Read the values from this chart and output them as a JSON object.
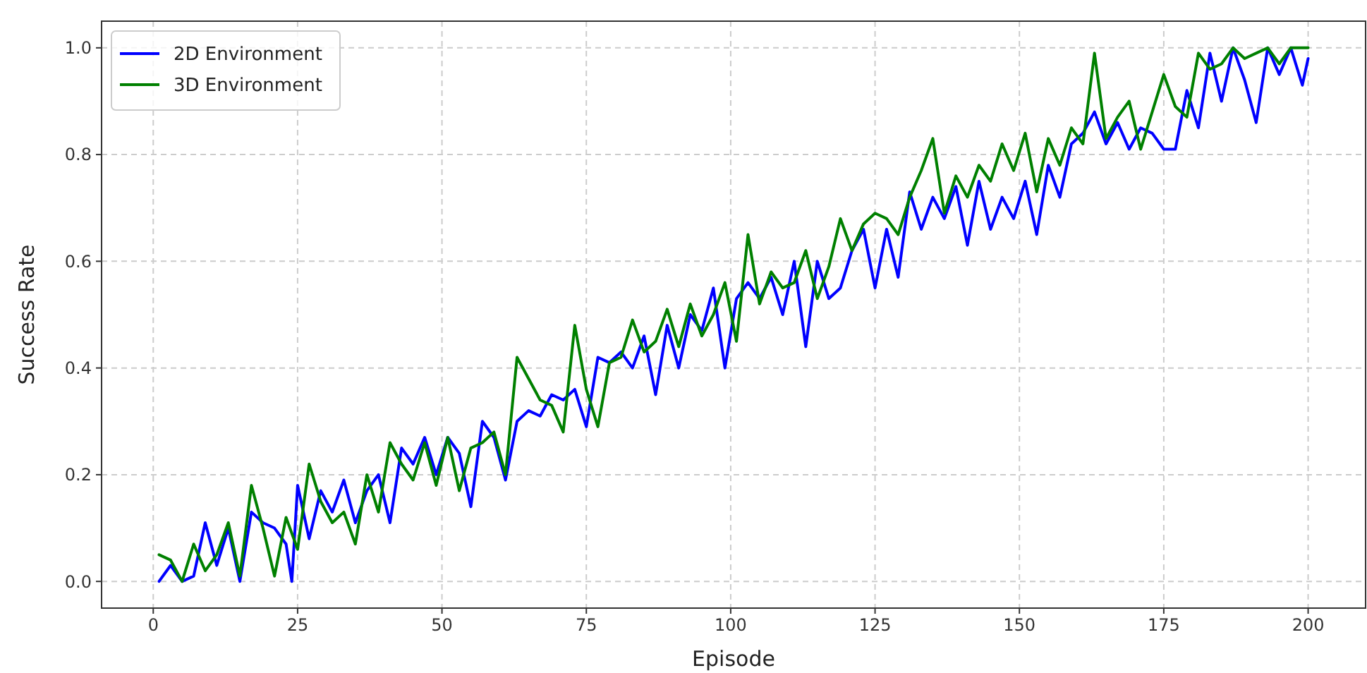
{
  "chart_data": {
    "type": "line",
    "xlabel": "Episode",
    "ylabel": "Success Rate",
    "xlim": [
      -8.95,
      209.95
    ],
    "ylim": [
      -0.05,
      1.05
    ],
    "xticks": [
      0,
      25,
      50,
      75,
      100,
      125,
      150,
      175,
      200
    ],
    "yticks": [
      {
        "value": 0,
        "label": "0.0"
      },
      {
        "value": 0.2,
        "label": "0.2"
      },
      {
        "value": 0.4,
        "label": "0.4"
      },
      {
        "value": 0.6,
        "label": "0.6"
      },
      {
        "value": 0.8,
        "label": "0.8"
      },
      {
        "value": 1,
        "label": "1.0"
      }
    ],
    "grid": true,
    "legend": "top left",
    "line_style": "solid",
    "series": [
      {
        "name": "2D Environment",
        "color": "#0000ff",
        "x": [
          1,
          3,
          5,
          7,
          9,
          11,
          13,
          15,
          17,
          19,
          21,
          23,
          24,
          25,
          27,
          29,
          31,
          33,
          35,
          37,
          39,
          41,
          43,
          45,
          47,
          49,
          51,
          53,
          55,
          57,
          59,
          61,
          63,
          65,
          67,
          69,
          71,
          73,
          75,
          77,
          79,
          81,
          83,
          85,
          87,
          89,
          91,
          93,
          95,
          97,
          99,
          101,
          103,
          105,
          107,
          109,
          111,
          113,
          115,
          117,
          119,
          121,
          123,
          125,
          127,
          129,
          131,
          133,
          135,
          137,
          139,
          141,
          143,
          145,
          147,
          149,
          151,
          153,
          155,
          157,
          159,
          161,
          163,
          165,
          167,
          169,
          171,
          173,
          175,
          177,
          179,
          181,
          183,
          185,
          187,
          189,
          191,
          193,
          195,
          197,
          199,
          200
        ],
        "values": [
          0.0,
          0.03,
          0.0,
          0.01,
          0.11,
          0.03,
          0.1,
          0.0,
          0.13,
          0.11,
          0.1,
          0.07,
          0.0,
          0.18,
          0.08,
          0.17,
          0.13,
          0.19,
          0.11,
          0.17,
          0.2,
          0.11,
          0.25,
          0.22,
          0.27,
          0.2,
          0.27,
          0.24,
          0.14,
          0.3,
          0.27,
          0.19,
          0.3,
          0.32,
          0.31,
          0.35,
          0.34,
          0.36,
          0.29,
          0.42,
          0.41,
          0.43,
          0.4,
          0.46,
          0.35,
          0.48,
          0.4,
          0.5,
          0.47,
          0.55,
          0.4,
          0.53,
          0.56,
          0.53,
          0.57,
          0.5,
          0.6,
          0.44,
          0.6,
          0.53,
          0.55,
          0.62,
          0.66,
          0.55,
          0.66,
          0.57,
          0.73,
          0.66,
          0.72,
          0.68,
          0.74,
          0.63,
          0.75,
          0.66,
          0.72,
          0.68,
          0.75,
          0.65,
          0.78,
          0.72,
          0.82,
          0.84,
          0.88,
          0.82,
          0.86,
          0.81,
          0.85,
          0.84,
          0.81,
          0.81,
          0.92,
          0.85,
          0.99,
          0.9,
          1.0,
          0.94,
          0.86,
          1.0,
          0.95,
          1.0,
          0.93,
          0.98
        ]
      },
      {
        "name": "3D Environment",
        "color": "#008000",
        "x": [
          1,
          3,
          5,
          7,
          9,
          11,
          13,
          15,
          17,
          19,
          21,
          23,
          25,
          27,
          29,
          31,
          33,
          35,
          37,
          39,
          41,
          43,
          45,
          47,
          49,
          51,
          53,
          55,
          57,
          59,
          61,
          63,
          65,
          67,
          69,
          71,
          73,
          75,
          77,
          79,
          81,
          83,
          85,
          87,
          89,
          91,
          93,
          95,
          97,
          99,
          101,
          103,
          105,
          107,
          109,
          111,
          113,
          115,
          117,
          119,
          121,
          123,
          125,
          127,
          129,
          131,
          133,
          135,
          137,
          139,
          141,
          143,
          145,
          147,
          149,
          151,
          153,
          155,
          157,
          159,
          161,
          163,
          165,
          167,
          169,
          171,
          173,
          175,
          177,
          179,
          181,
          183,
          185,
          187,
          189,
          191,
          193,
          195,
          197,
          199,
          200
        ],
        "values": [
          0.05,
          0.04,
          0.0,
          0.07,
          0.02,
          0.05,
          0.11,
          0.01,
          0.18,
          0.1,
          0.01,
          0.12,
          0.06,
          0.22,
          0.15,
          0.11,
          0.13,
          0.07,
          0.2,
          0.13,
          0.26,
          0.22,
          0.19,
          0.26,
          0.18,
          0.27,
          0.17,
          0.25,
          0.26,
          0.28,
          0.2,
          0.42,
          0.38,
          0.34,
          0.33,
          0.28,
          0.48,
          0.36,
          0.29,
          0.41,
          0.42,
          0.49,
          0.43,
          0.45,
          0.51,
          0.44,
          0.52,
          0.46,
          0.5,
          0.56,
          0.45,
          0.65,
          0.52,
          0.58,
          0.55,
          0.56,
          0.62,
          0.53,
          0.59,
          0.68,
          0.62,
          0.67,
          0.69,
          0.68,
          0.65,
          0.72,
          0.77,
          0.83,
          0.69,
          0.76,
          0.72,
          0.78,
          0.75,
          0.82,
          0.77,
          0.84,
          0.73,
          0.83,
          0.78,
          0.85,
          0.82,
          0.99,
          0.83,
          0.87,
          0.9,
          0.81,
          0.88,
          0.95,
          0.89,
          0.87,
          0.99,
          0.96,
          0.97,
          1.0,
          0.98,
          0.99,
          1.0,
          0.97,
          1.0,
          1.0,
          1.0
        ]
      }
    ]
  }
}
